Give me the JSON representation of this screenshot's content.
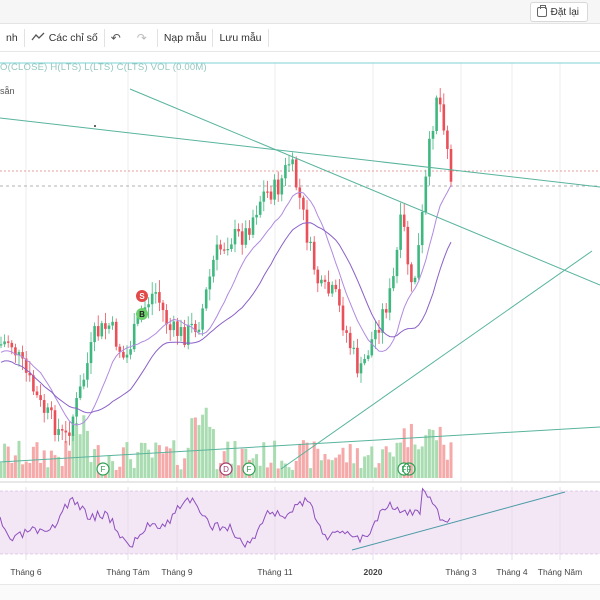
{
  "topbar": {
    "reset_label": "Đặt lại",
    "reset_icon": "reset-icon"
  },
  "toolbar": {
    "items": [
      {
        "label": "nh",
        "icon": ""
      },
      {
        "label": "Các chỉ số",
        "icon": "indicator-wave-icon"
      },
      {
        "label": "",
        "icon": "undo-icon"
      },
      {
        "label": "",
        "icon": "redo-icon"
      },
      {
        "label": "Nạp mẫu",
        "icon": ""
      },
      {
        "label": "Lưu mẫu",
        "icon": ""
      }
    ]
  },
  "legend": {
    "line1": "O(CLOSE) H(LTS) L(LTS) C(LTS) VOL (0.00M)",
    "line2": "sẵn"
  },
  "markers": {
    "sell": "S",
    "buy": "B",
    "events": [
      "F",
      "D",
      "F",
      "F",
      "F"
    ]
  },
  "x_axis": [
    "Tháng 6",
    "Tháng Tám",
    "Tháng 9",
    "Tháng 11",
    "2020",
    "Tháng 3",
    "Tháng 4",
    "Tháng Năm"
  ],
  "colors": {
    "up": "#3fb87f",
    "down": "#e9505a",
    "vol_up": "#a9dcb1",
    "vol_down": "#f5a9a9",
    "ma_fast": "#a67fd6",
    "ma_slow": "#8a60c8",
    "trend": "#58b49d",
    "rsi_fill": "#f2e6f6",
    "rsi_line": "#8e4fbe"
  }
}
